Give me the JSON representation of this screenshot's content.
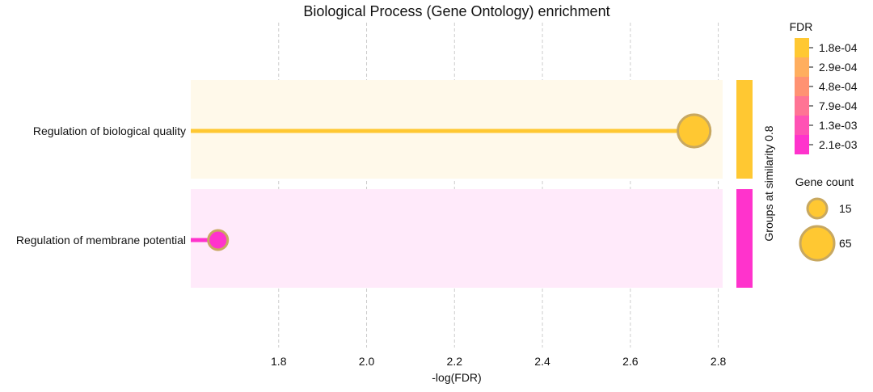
{
  "chart_data": {
    "type": "scatter",
    "title": "Biological Process (Gene Ontology) enrichment",
    "xlabel": "-log(FDR)",
    "xlim": [
      1.6,
      2.81
    ],
    "xticks": [
      1.8,
      2.0,
      2.2,
      2.4,
      2.6,
      2.8
    ],
    "grid": true,
    "terms": [
      {
        "label": "Regulation of biological quality",
        "x": 2.745,
        "gene_count": 60,
        "fdr": 0.00018,
        "color": "#FFC832",
        "band_color": "#FFF9EA"
      },
      {
        "label": "Regulation of membrane potential",
        "x": 1.662,
        "gene_count": 15,
        "fdr": 0.0021,
        "color": "#FF33CC",
        "band_color": "#FFEAFA"
      }
    ],
    "group_label": "Groups at similarity 0.8",
    "fdr_legend": {
      "title": "FDR",
      "entries": [
        {
          "label": "1.8e-04",
          "color": "#FFC832"
        },
        {
          "label": "2.9e-04",
          "color": "#FFAE5E"
        },
        {
          "label": "4.8e-04",
          "color": "#FF9272"
        },
        {
          "label": "7.9e-04",
          "color": "#FF7494"
        },
        {
          "label": "1.3e-03",
          "color": "#FF52B4"
        },
        {
          "label": "2.1e-03",
          "color": "#FF33CC"
        }
      ]
    },
    "size_legend": {
      "title": "Gene count",
      "entries": [
        {
          "label": "15",
          "value": 15
        },
        {
          "label": "65",
          "value": 65
        }
      ]
    },
    "marker_edge_color": "#C8A860"
  }
}
